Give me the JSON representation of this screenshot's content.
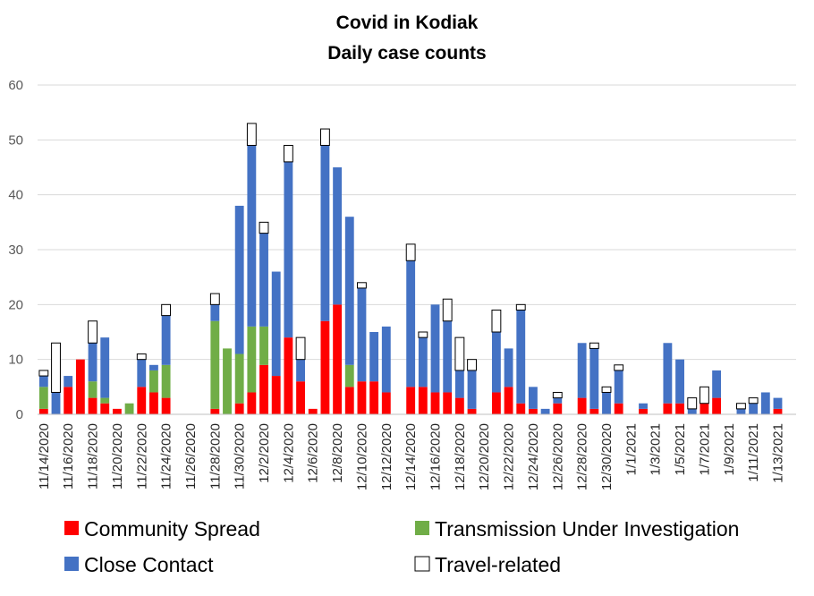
{
  "colors": {
    "community": "#ff0000",
    "investigation": "#70ad47",
    "contact": "#4472c4",
    "travel": "#ffffff",
    "grid": "#d9d9d9"
  },
  "chart_data": {
    "type": "bar",
    "stacked": true,
    "title": "Covid in Kodiak",
    "subtitle": "Daily case counts",
    "ylim": [
      0,
      60
    ],
    "yticks": [
      0,
      10,
      20,
      30,
      40,
      50,
      60
    ],
    "grid": true,
    "legend_position": "bottom",
    "categories": [
      "11/14/2020",
      "11/15/2020",
      "11/16/2020",
      "11/17/2020",
      "11/18/2020",
      "11/19/2020",
      "11/20/2020",
      "11/21/2020",
      "11/22/2020",
      "11/23/2020",
      "11/24/2020",
      "11/25/2020",
      "11/26/2020",
      "11/27/2020",
      "11/28/2020",
      "11/29/2020",
      "11/30/2020",
      "12/1/2020",
      "12/2/2020",
      "12/3/2020",
      "12/4/2020",
      "12/5/2020",
      "12/6/2020",
      "12/7/2020",
      "12/8/2020",
      "12/9/2020",
      "12/10/2020",
      "12/11/2020",
      "12/12/2020",
      "12/13/2020",
      "12/14/2020",
      "12/15/2020",
      "12/16/2020",
      "12/17/2020",
      "12/18/2020",
      "12/19/2020",
      "12/20/2020",
      "12/21/2020",
      "12/22/2020",
      "12/23/2020",
      "12/24/2020",
      "12/25/2020",
      "12/26/2020",
      "12/27/2020",
      "12/28/2020",
      "12/29/2020",
      "12/30/2020",
      "12/31/2020",
      "1/1/2021",
      "1/2/2021",
      "1/3/2021",
      "1/4/2021",
      "1/5/2021",
      "1/6/2021",
      "1/7/2021",
      "1/8/2021",
      "1/9/2021",
      "1/10/2021",
      "1/11/2021",
      "1/12/2021",
      "1/13/2021",
      "1/14/2021"
    ],
    "tick_labels": [
      "11/14/2020",
      "11/16/2020",
      "11/18/2020",
      "11/20/2020",
      "11/22/2020",
      "11/24/2020",
      "11/26/2020",
      "11/28/2020",
      "11/30/2020",
      "12/2/2020",
      "12/4/2020",
      "12/6/2020",
      "12/8/2020",
      "12/10/2020",
      "12/12/2020",
      "12/14/2020",
      "12/16/2020",
      "12/18/2020",
      "12/20/2020",
      "12/22/2020",
      "12/24/2020",
      "12/26/2020",
      "12/28/2020",
      "12/30/2020",
      "1/1/2021",
      "1/3/2021",
      "1/5/2021",
      "1/7/2021",
      "1/9/2021",
      "1/11/2021",
      "1/13/2021"
    ],
    "series": [
      {
        "name": "Community Spread",
        "key": "community",
        "values": [
          1,
          0,
          5,
          10,
          3,
          2,
          1,
          0,
          5,
          4,
          3,
          0,
          0,
          0,
          1,
          0,
          2,
          4,
          9,
          7,
          14,
          6,
          1,
          17,
          20,
          5,
          6,
          6,
          4,
          0,
          5,
          5,
          4,
          4,
          3,
          1,
          0,
          4,
          5,
          2,
          1,
          0,
          2,
          0,
          3,
          1,
          0,
          2,
          0,
          1,
          0,
          2,
          2,
          0,
          2,
          3,
          0,
          0,
          0,
          0,
          1,
          0
        ]
      },
      {
        "name": "Transmission Under Investigation",
        "key": "investigation",
        "values": [
          4,
          0,
          0,
          0,
          3,
          1,
          0,
          2,
          0,
          4,
          6,
          0,
          0,
          0,
          16,
          12,
          9,
          12,
          7,
          0,
          0,
          0,
          0,
          0,
          0,
          4,
          0,
          0,
          0,
          0,
          0,
          0,
          0,
          0,
          0,
          0,
          0,
          0,
          0,
          0,
          0,
          0,
          0,
          0,
          0,
          0,
          0,
          0,
          0,
          0,
          0,
          0,
          0,
          0,
          0,
          0,
          0,
          0,
          0,
          0,
          0,
          0
        ]
      },
      {
        "name": "Close Contact",
        "key": "contact",
        "values": [
          2,
          4,
          2,
          0,
          7,
          11,
          0,
          0,
          5,
          1,
          9,
          0,
          0,
          0,
          3,
          0,
          27,
          33,
          17,
          19,
          32,
          4,
          0,
          32,
          25,
          27,
          17,
          9,
          12,
          0,
          23,
          9,
          16,
          13,
          5,
          7,
          0,
          11,
          7,
          17,
          4,
          1,
          1,
          0,
          10,
          11,
          4,
          6,
          0,
          1,
          0,
          11,
          8,
          1,
          0,
          5,
          0,
          1,
          2,
          4,
          2,
          0
        ]
      },
      {
        "name": "Travel-related",
        "key": "travel",
        "values": [
          1,
          9,
          0,
          0,
          4,
          0,
          0,
          0,
          1,
          0,
          2,
          0,
          0,
          0,
          2,
          0,
          0,
          4,
          2,
          0,
          3,
          4,
          0,
          3,
          0,
          0,
          1,
          0,
          0,
          0,
          3,
          1,
          0,
          4,
          6,
          2,
          0,
          4,
          0,
          1,
          0,
          0,
          1,
          0,
          0,
          1,
          1,
          1,
          0,
          0,
          0,
          0,
          0,
          2,
          3,
          0,
          0,
          1,
          1,
          0,
          0,
          0
        ]
      }
    ]
  }
}
